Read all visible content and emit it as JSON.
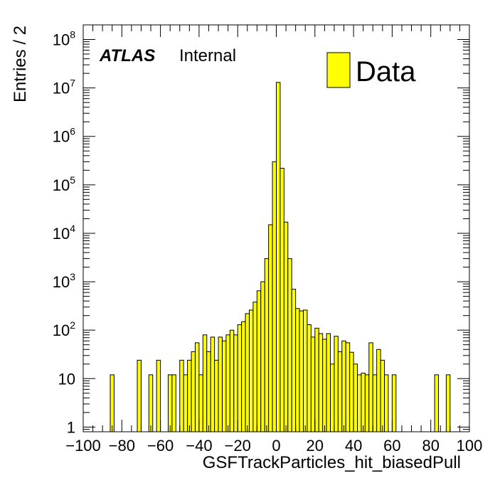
{
  "chart_data": {
    "type": "bar",
    "title": "",
    "xlabel": "GSFTrackParticles_hit_biasedPull",
    "ylabel": "Entries / 2",
    "xlim": [
      -100,
      100
    ],
    "ylim": [
      0.8,
      200000000
    ],
    "yscale": "log",
    "bin_width": 2,
    "grid": false,
    "experiment_label": "ATLAS",
    "status_label": "Internal",
    "legend": {
      "placement": "top-right",
      "entries": [
        {
          "label": "Data",
          "color": "#ffff00"
        }
      ]
    },
    "series": [
      {
        "name": "Data",
        "color": "#ffff00",
        "bins_low": [
          -86,
          -72,
          -66,
          -62,
          -56,
          -54,
          -50,
          -48,
          -46,
          -44,
          -42,
          -40,
          -38,
          -36,
          -34,
          -32,
          -30,
          -28,
          -26,
          -24,
          -22,
          -20,
          -18,
          -16,
          -14,
          -12,
          -10,
          -8,
          -6,
          -4,
          -2,
          0,
          2,
          4,
          6,
          8,
          10,
          12,
          14,
          16,
          18,
          20,
          22,
          24,
          26,
          28,
          30,
          32,
          34,
          36,
          38,
          40,
          42,
          44,
          46,
          48,
          50,
          52,
          54,
          56,
          60,
          82,
          88
        ],
        "values": [
          12,
          24,
          12,
          24,
          12,
          12,
          24,
          12,
          24,
          36,
          55,
          12,
          80,
          36,
          72,
          24,
          72,
          60,
          80,
          100,
          80,
          130,
          150,
          220,
          260,
          380,
          650,
          1000,
          3000,
          15000,
          300000,
          13000000,
          220000,
          17000,
          3000,
          700,
          280,
          250,
          260,
          130,
          72,
          110,
          85,
          65,
          85,
          20,
          75,
          36,
          60,
          55,
          35,
          20,
          12,
          13,
          12,
          55,
          12,
          40,
          24,
          12,
          12,
          12,
          12
        ]
      }
    ],
    "x_ticks": [
      -100,
      -80,
      -60,
      -40,
      -20,
      0,
      20,
      40,
      60,
      80,
      100
    ],
    "x_tick_labels": [
      "−100",
      "−80",
      "−60",
      "−40",
      "−20",
      "0",
      "20",
      "40",
      "60",
      "80",
      "100"
    ],
    "y_tick_labels": [
      {
        "base": "1",
        "exp": ""
      },
      {
        "base": "10",
        "exp": ""
      },
      {
        "base": "10",
        "exp": "2"
      },
      {
        "base": "10",
        "exp": "3"
      },
      {
        "base": "10",
        "exp": "4"
      },
      {
        "base": "10",
        "exp": "5"
      },
      {
        "base": "10",
        "exp": "6"
      },
      {
        "base": "10",
        "exp": "7"
      },
      {
        "base": "10",
        "exp": "8"
      }
    ]
  }
}
